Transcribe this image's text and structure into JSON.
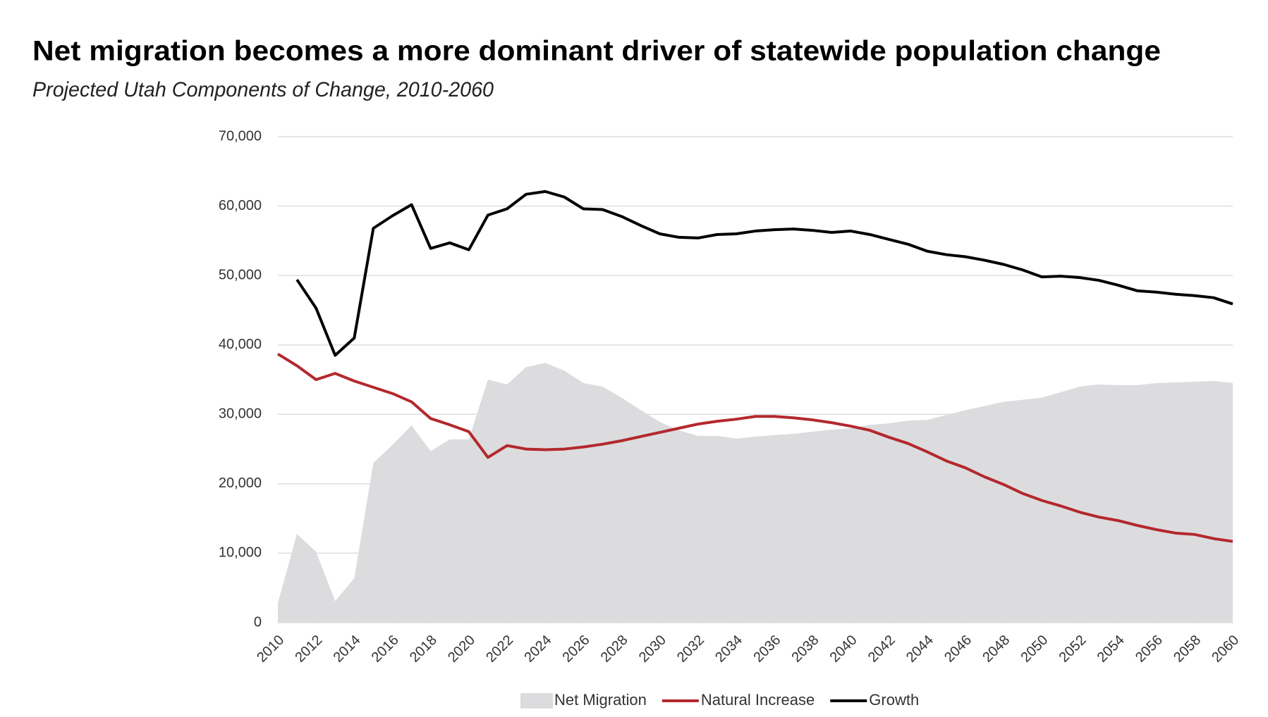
{
  "chart_data": {
    "type": "line",
    "title": "Net migration becomes a more dominant driver of statewide population change",
    "subtitle": "Projected Utah Components of Change, 2010-2060",
    "x": [
      2010,
      2011,
      2012,
      2013,
      2014,
      2015,
      2016,
      2017,
      2018,
      2019,
      2020,
      2021,
      2022,
      2023,
      2024,
      2025,
      2026,
      2027,
      2028,
      2029,
      2030,
      2031,
      2032,
      2033,
      2034,
      2035,
      2036,
      2037,
      2038,
      2039,
      2040,
      2041,
      2042,
      2043,
      2044,
      2045,
      2046,
      2047,
      2048,
      2049,
      2050,
      2051,
      2052,
      2053,
      2054,
      2055,
      2056,
      2057,
      2058,
      2059,
      2060
    ],
    "series": [
      {
        "name": "Net Migration",
        "type": "area",
        "color": "#dcdcde",
        "values": [
          2800,
          12800,
          10200,
          3100,
          6400,
          23000,
          25600,
          28400,
          24700,
          26400,
          26400,
          35000,
          34300,
          36800,
          37400,
          36300,
          34500,
          34000,
          32400,
          30600,
          28900,
          27700,
          26900,
          26900,
          26500,
          26800,
          27000,
          27200,
          27500,
          27800,
          28000,
          28500,
          28700,
          29100,
          29200,
          29900,
          30600,
          31200,
          31800,
          32100,
          32400,
          33200,
          34000,
          34300,
          34200,
          34200,
          34500,
          34600,
          34700,
          34800,
          34500
        ]
      },
      {
        "name": "Natural Increase",
        "type": "line",
        "color": "#b3282d",
        "values": [
          38700,
          37000,
          35000,
          35900,
          34800,
          33900,
          33000,
          31800,
          29400,
          28500,
          27500,
          23800,
          25500,
          25000,
          24900,
          25000,
          25300,
          25700,
          26200,
          26800,
          27400,
          28000,
          28600,
          29000,
          29300,
          29700,
          29700,
          29500,
          29200,
          28800,
          28300,
          27700,
          26700,
          25800,
          24600,
          23300,
          22300,
          21000,
          19900,
          18600,
          17600,
          16800,
          15900,
          15200,
          14700,
          14000,
          13400,
          12900,
          12700,
          12100,
          11700
        ]
      },
      {
        "name": "Growth",
        "type": "line",
        "color": "#000000",
        "values": [
          null,
          49400,
          45300,
          38500,
          41000,
          56800,
          58600,
          60200,
          53900,
          54700,
          53700,
          58700,
          59600,
          61700,
          62100,
          61300,
          59600,
          59500,
          58500,
          57200,
          56000,
          55500,
          55400,
          55900,
          56000,
          56400,
          56600,
          56700,
          56500,
          56200,
          56400,
          55900,
          55200,
          54500,
          53500,
          53000,
          52700,
          52200,
          51600,
          50800,
          49800,
          49900,
          49700,
          49300,
          48600,
          47800,
          47600,
          47300,
          47100,
          46800,
          45900
        ]
      }
    ],
    "xlim": [
      2010,
      2060
    ],
    "xticks": [
      2010,
      2012,
      2014,
      2016,
      2018,
      2020,
      2022,
      2024,
      2026,
      2028,
      2030,
      2032,
      2034,
      2036,
      2038,
      2040,
      2042,
      2044,
      2046,
      2048,
      2050,
      2052,
      2054,
      2056,
      2058,
      2060
    ],
    "ylim": [
      0,
      70000
    ],
    "yticks": [
      0,
      {
        "value": 10000,
        "label": "10,000"
      },
      {
        "value": 20000,
        "label": "20,000"
      },
      {
        "value": 30000,
        "label": "30,000"
      },
      {
        "value": 40000,
        "label": "40,000"
      },
      {
        "value": 50000,
        "label": "50,000"
      },
      {
        "value": 60000,
        "label": "60,000"
      },
      {
        "value": 70000,
        "label": "70,000"
      }
    ],
    "grid": true,
    "legend": "bottom"
  }
}
